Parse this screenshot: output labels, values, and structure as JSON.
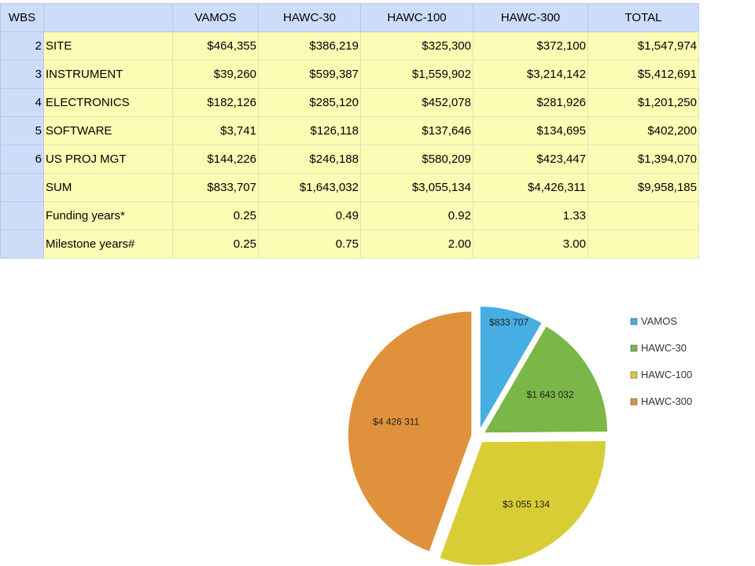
{
  "table": {
    "headers": [
      "WBS",
      "",
      "VAMOS",
      "HAWC-30",
      "HAWC-100",
      "HAWC-300",
      "TOTAL"
    ],
    "rows": [
      {
        "wbs": "2",
        "item": "SITE",
        "values": [
          "$464,355",
          "$386,219",
          "$325,300",
          "$372,100",
          "$1,547,974"
        ]
      },
      {
        "wbs": "3",
        "item": "INSTRUMENT",
        "values": [
          "$39,260",
          "$599,387",
          "$1,559,902",
          "$3,214,142",
          "$5,412,691"
        ]
      },
      {
        "wbs": "4",
        "item": "ELECTRONICS",
        "values": [
          "$182,126",
          "$285,120",
          "$452,078",
          "$281,926",
          "$1,201,250"
        ]
      },
      {
        "wbs": "5",
        "item": "SOFTWARE",
        "values": [
          "$3,741",
          "$126,118",
          "$137,646",
          "$134,695",
          "$402,200"
        ]
      },
      {
        "wbs": "6",
        "item": "US PROJ MGT",
        "values": [
          "$144,226",
          "$246,188",
          "$580,209",
          "$423,447",
          "$1,394,070"
        ]
      },
      {
        "wbs": "",
        "item": "SUM",
        "values": [
          "$833,707",
          "$1,643,032",
          "$3,055,134",
          "$4,426,311",
          "$9,958,185"
        ]
      },
      {
        "wbs": "",
        "item": "Funding years*",
        "values": [
          "0.25",
          "0.49",
          "0.92",
          "1.33",
          ""
        ]
      },
      {
        "wbs": "",
        "item": "Milestone years#",
        "values": [
          "0.25",
          "0.75",
          "2.00",
          "3.00",
          ""
        ]
      }
    ]
  },
  "chart_data": {
    "type": "pie",
    "title": "",
    "legend_position": "right",
    "start": "12 o'clock, clockwise",
    "categories": [
      "VAMOS",
      "HAWC-30",
      "HAWC-100",
      "HAWC-300"
    ],
    "values": [
      833707,
      1643032,
      3055134,
      4426311
    ],
    "data_labels": [
      "$833 707",
      "$1 643 032",
      "$3 055 134",
      "$4 426 311"
    ],
    "colors": [
      "#46aee3",
      "#7ab648",
      "#d9cd35",
      "#e0913c"
    ],
    "legend": [
      "VAMOS",
      "HAWC-30",
      "HAWC-100",
      "HAWC-300"
    ]
  }
}
